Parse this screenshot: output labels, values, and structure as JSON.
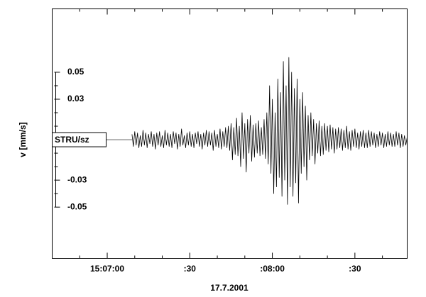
{
  "chart_data": {
    "type": "line",
    "trace_label": "STRU/sz",
    "ylabel": "v [mm/s]",
    "xlabel": "17.7.2001",
    "xlim": [
      "15:06:40",
      "15:08:49"
    ],
    "xticks": [
      {
        "value": "15:07:00",
        "label": "15:07:00"
      },
      {
        "value": "15:07:30",
        "label": ":30"
      },
      {
        "value": "15:08:00",
        "label": ":08:00"
      },
      {
        "value": "15:08:30",
        "label": ":30"
      }
    ],
    "xminor_ticks": [
      "15:06:50",
      "15:07:10",
      "15:07:20",
      "15:07:40",
      "15:07:50",
      "15:08:10",
      "15:08:20",
      "15:08:40"
    ],
    "ylim": [
      -0.088,
      0.097
    ],
    "yticks": [
      0.05,
      0.03,
      -0.03,
      -0.05
    ],
    "yminor_ticks": [
      0.04,
      0.02,
      0.01,
      0,
      -0.01,
      -0.02,
      -0.04
    ],
    "color": "#000000",
    "x": [
      "15:07:09",
      "15:07:09.5",
      "15:07:10",
      "15:07:10.5",
      "15:07:11",
      "15:07:11.5",
      "15:07:12",
      "15:07:12.5",
      "15:07:13",
      "15:07:13.5",
      "15:07:14",
      "15:07:14.5",
      "15:07:15",
      "15:07:15.5",
      "15:07:16",
      "15:07:16.5",
      "15:07:17",
      "15:07:17.5",
      "15:07:18",
      "15:07:18.5",
      "15:07:19",
      "15:07:19.5",
      "15:07:20",
      "15:07:20.5",
      "15:07:21",
      "15:07:21.5",
      "15:07:22",
      "15:07:22.5",
      "15:07:23",
      "15:07:23.5",
      "15:07:24",
      "15:07:24.5",
      "15:07:25",
      "15:07:25.5",
      "15:07:26",
      "15:07:26.5",
      "15:07:27",
      "15:07:27.5",
      "15:07:28",
      "15:07:28.5",
      "15:07:29",
      "15:07:29.5",
      "15:07:30",
      "15:07:30.5",
      "15:07:31",
      "15:07:31.5",
      "15:07:32",
      "15:07:32.5",
      "15:07:33",
      "15:07:33.5",
      "15:07:34",
      "15:07:34.5",
      "15:07:35",
      "15:07:35.5",
      "15:07:36",
      "15:07:36.5",
      "15:07:37",
      "15:07:37.5",
      "15:07:38",
      "15:07:38.5",
      "15:07:39",
      "15:07:39.5",
      "15:07:40",
      "15:07:40.5",
      "15:07:41",
      "15:07:41.5",
      "15:07:42",
      "15:07:42.5",
      "15:07:43",
      "15:07:43.5",
      "15:07:44",
      "15:07:44.5",
      "15:07:45",
      "15:07:45.5",
      "15:07:46",
      "15:07:46.5",
      "15:07:47",
      "15:07:47.5",
      "15:07:48",
      "15:07:48.5",
      "15:07:49",
      "15:07:49.5",
      "15:07:50",
      "15:07:50.5",
      "15:07:51",
      "15:07:51.5",
      "15:07:52",
      "15:07:52.5",
      "15:07:53",
      "15:07:53.5",
      "15:07:54",
      "15:07:54.5",
      "15:07:55",
      "15:07:55.5",
      "15:07:56",
      "15:07:56.5",
      "15:07:57",
      "15:07:57.5",
      "15:07:58",
      "15:07:58.5",
      "15:07:59",
      "15:07:59.5",
      "15:08:00",
      "15:08:00.5",
      "15:08:01",
      "15:08:01.5",
      "15:08:02",
      "15:08:02.5",
      "15:08:03",
      "15:08:03.5",
      "15:08:04",
      "15:08:04.5",
      "15:08:05",
      "15:08:05.5",
      "15:08:06",
      "15:08:06.5",
      "15:08:07",
      "15:08:07.5",
      "15:08:08",
      "15:08:08.5",
      "15:08:09",
      "15:08:09.5",
      "15:08:10",
      "15:08:10.5",
      "15:08:11",
      "15:08:11.5",
      "15:08:12",
      "15:08:12.5",
      "15:08:13",
      "15:08:13.5",
      "15:08:14",
      "15:08:14.5",
      "15:08:15",
      "15:08:15.5",
      "15:08:16",
      "15:08:16.5",
      "15:08:17",
      "15:08:17.5",
      "15:08:18",
      "15:08:18.5",
      "15:08:19",
      "15:08:19.5",
      "15:08:20",
      "15:08:20.5",
      "15:08:21",
      "15:08:21.5",
      "15:08:22",
      "15:08:22.5",
      "15:08:23",
      "15:08:23.5",
      "15:08:24",
      "15:08:24.5",
      "15:08:25",
      "15:08:25.5",
      "15:08:26",
      "15:08:26.5",
      "15:08:27",
      "15:08:27.5",
      "15:08:28",
      "15:08:28.5",
      "15:08:29",
      "15:08:29.5",
      "15:08:30",
      "15:08:30.5",
      "15:08:31",
      "15:08:31.5",
      "15:08:32",
      "15:08:32.5",
      "15:08:33",
      "15:08:33.5",
      "15:08:34",
      "15:08:34.5",
      "15:08:35",
      "15:08:35.5",
      "15:08:36",
      "15:08:36.5",
      "15:08:37",
      "15:08:37.5",
      "15:08:38",
      "15:08:38.5",
      "15:08:39",
      "15:08:39.5",
      "15:08:40",
      "15:08:40.5",
      "15:08:41",
      "15:08:41.5",
      "15:08:42",
      "15:08:42.5",
      "15:08:43",
      "15:08:43.5",
      "15:08:44",
      "15:08:44.5",
      "15:08:45",
      "15:08:45.5",
      "15:08:46",
      "15:08:46.5",
      "15:08:47",
      "15:08:47.5",
      "15:08:48",
      "15:08:48.5",
      "15:08:49"
    ],
    "values": [
      0.004,
      -0.005,
      0.006,
      -0.004,
      0.005,
      -0.006,
      0.003,
      -0.005,
      0.007,
      -0.004,
      0.005,
      -0.006,
      0.004,
      -0.003,
      0.006,
      -0.005,
      0.004,
      -0.007,
      0.005,
      -0.004,
      0.006,
      -0.005,
      0.003,
      -0.006,
      0.007,
      -0.004,
      0.005,
      -0.005,
      0.004,
      -0.006,
      0.006,
      -0.003,
      0.005,
      -0.007,
      0.004,
      -0.005,
      0.008,
      -0.004,
      0.003,
      -0.006,
      0.005,
      -0.004,
      0.006,
      -0.005,
      0.004,
      -0.006,
      0.005,
      -0.003,
      0.006,
      -0.005,
      0.004,
      -0.007,
      0.005,
      -0.004,
      0.007,
      -0.005,
      0.006,
      -0.004,
      0.005,
      -0.008,
      0.007,
      -0.005,
      0.004,
      -0.006,
      0.008,
      -0.007,
      0.006,
      -0.005,
      0.009,
      -0.006,
      0.01,
      -0.008,
      0.012,
      -0.015,
      0.009,
      -0.011,
      0.016,
      -0.012,
      0.01,
      -0.02,
      0.02,
      -0.014,
      0.012,
      -0.024,
      0.015,
      -0.01,
      0.018,
      -0.016,
      0.011,
      -0.013,
      0.012,
      -0.01,
      0.014,
      -0.012,
      0.009,
      -0.011,
      0.015,
      -0.014,
      0.02,
      -0.018,
      0.04,
      -0.025,
      0.03,
      -0.04,
      0.02,
      -0.035,
      0.045,
      -0.028,
      0.035,
      -0.042,
      0.058,
      -0.03,
      0.04,
      -0.048,
      0.061,
      -0.035,
      0.05,
      -0.042,
      0.038,
      -0.032,
      0.045,
      -0.047,
      0.03,
      -0.025,
      0.035,
      -0.02,
      0.025,
      -0.03,
      0.018,
      -0.015,
      0.02,
      -0.012,
      0.015,
      -0.018,
      0.012,
      -0.01,
      0.014,
      -0.012,
      0.01,
      -0.011,
      0.012,
      -0.008,
      0.01,
      -0.009,
      0.011,
      -0.007,
      0.009,
      -0.01,
      0.008,
      -0.007,
      0.009,
      -0.006,
      0.008,
      -0.008,
      0.007,
      -0.006,
      0.01,
      -0.007,
      0.006,
      -0.008,
      0.007,
      -0.005,
      0.008,
      -0.006,
      0.005,
      -0.007,
      0.006,
      -0.005,
      0.007,
      -0.006,
      0.005,
      -0.006,
      0.007,
      -0.005,
      0.006,
      -0.004,
      0.005,
      -0.006,
      0.004,
      -0.005,
      0.006,
      -0.004,
      0.005,
      -0.006,
      0.004,
      -0.005,
      0.006,
      -0.004,
      0.005,
      -0.005,
      0.004,
      -0.005,
      0.006,
      -0.004,
      0.005,
      -0.006,
      0.004,
      -0.005,
      0.003,
      -0.004,
      0.002
    ]
  }
}
